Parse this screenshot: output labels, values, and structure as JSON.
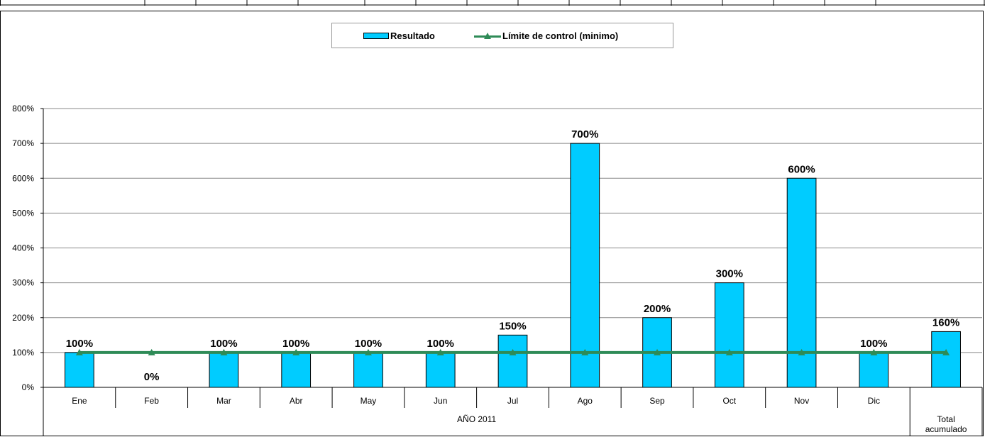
{
  "chart_data": {
    "type": "bar",
    "categories": [
      "Ene",
      "Feb",
      "Mar",
      "Abr",
      "May",
      "Jun",
      "Jul",
      "Ago",
      "Sep",
      "Oct",
      "Nov",
      "Dic",
      "Total acumulado"
    ],
    "group_label": "AÑO 2011",
    "group_categories": [
      "Ene",
      "Feb",
      "Mar",
      "Abr",
      "May",
      "Jun",
      "Jul",
      "Ago",
      "Sep",
      "Oct",
      "Nov",
      "Dic"
    ],
    "series": [
      {
        "name": "Resultado",
        "kind": "bar",
        "color": "#00ccff",
        "values": [
          100,
          0,
          100,
          100,
          100,
          100,
          150,
          700,
          200,
          300,
          600,
          100,
          160
        ],
        "data_labels": [
          "100%",
          "0%",
          "100%",
          "100%",
          "100%",
          "100%",
          "150%",
          "700%",
          "200%",
          "300%",
          "600%",
          "100%",
          "160%"
        ]
      },
      {
        "name": "Límite de control (mínimo)",
        "legend_text": "Límite de control (minimo)",
        "kind": "line",
        "marker": "triangle",
        "color": "#2e8b57",
        "values": [
          100,
          100,
          100,
          100,
          100,
          100,
          100,
          100,
          100,
          100,
          100,
          100,
          100
        ]
      }
    ],
    "y_ticks": [
      "0%",
      "100%",
      "200%",
      "300%",
      "400%",
      "500%",
      "600%",
      "700%",
      "800%"
    ],
    "ylim": [
      0,
      800
    ],
    "y_unit": "%",
    "grid": true,
    "legend_position": "top-center",
    "title": "",
    "xlabel": "",
    "ylabel": ""
  },
  "legend": {
    "bar_label": "Resultado",
    "line_label": "Límite de control (minimo)"
  }
}
